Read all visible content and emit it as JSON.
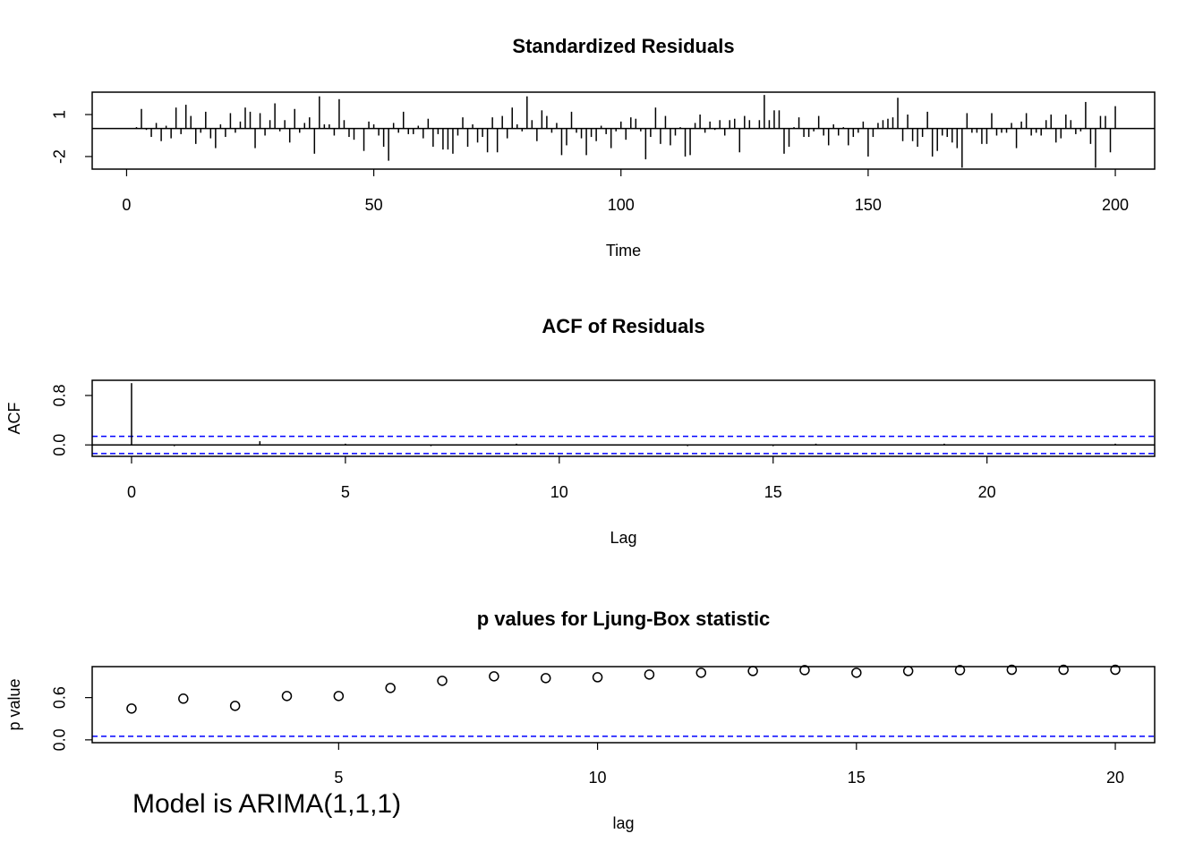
{
  "chart_data": [
    {
      "type": "spike",
      "title": "Standardized Residuals",
      "xlabel": "Time",
      "color": "#000000",
      "x": [
        1,
        2,
        3,
        4,
        5,
        6,
        7,
        8,
        9,
        10,
        11,
        12,
        13,
        14,
        15,
        16,
        17,
        18,
        19,
        20,
        21,
        22,
        23,
        24,
        25,
        26,
        27,
        28,
        29,
        30,
        31,
        32,
        33,
        34,
        35,
        36,
        37,
        38,
        39,
        40,
        41,
        42,
        43,
        44,
        45,
        46,
        47,
        48,
        49,
        50,
        51,
        52,
        53,
        54,
        55,
        56,
        57,
        58,
        59,
        60,
        61,
        62,
        63,
        64,
        65,
        66,
        67,
        68,
        69,
        70,
        71,
        72,
        73,
        74,
        75,
        76,
        77,
        78,
        79,
        80,
        81,
        82,
        83,
        84,
        85,
        86,
        87,
        88,
        89,
        90,
        91,
        92,
        93,
        94,
        95,
        96,
        97,
        98,
        99,
        100,
        101,
        102,
        103,
        104,
        105,
        106,
        107,
        108,
        109,
        110,
        111,
        112,
        113,
        114,
        115,
        116,
        117,
        118,
        119,
        120,
        121,
        122,
        123,
        124,
        125,
        126,
        127,
        128,
        129,
        130,
        131,
        132,
        133,
        134,
        135,
        136,
        137,
        138,
        139,
        140,
        141,
        142,
        143,
        144,
        145,
        146,
        147,
        148,
        149,
        150,
        151,
        152,
        153,
        154,
        155,
        156,
        157,
        158,
        159,
        160,
        161,
        162,
        163,
        164,
        165,
        166,
        167,
        168,
        169,
        170,
        171,
        172,
        173,
        174,
        175,
        176,
        177,
        178,
        179,
        180,
        181,
        182,
        183,
        184,
        185,
        186,
        187,
        188,
        189,
        190,
        191,
        192,
        193,
        194,
        195,
        196,
        197,
        198,
        199,
        200
      ],
      "values": [
        0.0,
        0.1,
        1.4,
        -0.1,
        -0.6,
        0.4,
        -0.9,
        0.2,
        -0.7,
        1.5,
        -0.4,
        1.7,
        0.9,
        -1.1,
        -0.3,
        1.2,
        -0.7,
        -1.4,
        0.3,
        -0.6,
        1.1,
        -0.3,
        0.5,
        1.5,
        1.2,
        -1.4,
        1.1,
        -0.5,
        0.6,
        1.8,
        -0.2,
        0.6,
        -1.0,
        1.4,
        -0.3,
        0.4,
        0.8,
        -1.8,
        2.3,
        0.3,
        0.3,
        -0.5,
        2.1,
        0.6,
        -0.6,
        -0.8,
        0.0,
        -1.6,
        0.5,
        0.3,
        -0.5,
        -1.3,
        -2.3,
        0.4,
        -0.3,
        1.2,
        -0.4,
        -0.4,
        0.2,
        -0.7,
        0.7,
        -1.3,
        -0.4,
        -1.5,
        -1.5,
        -1.8,
        -0.5,
        0.8,
        -1.3,
        0.3,
        -1.0,
        -0.6,
        -1.7,
        0.8,
        -1.7,
        0.9,
        -0.7,
        1.5,
        0.3,
        -0.2,
        2.3,
        0.6,
        -0.9,
        1.3,
        0.9,
        -0.3,
        0.4,
        -1.9,
        -1.2,
        1.2,
        -0.3,
        -0.7,
        -1.9,
        -0.6,
        -0.9,
        0.2,
        -0.4,
        -1.4,
        -0.2,
        0.5,
        -0.8,
        0.8,
        0.7,
        -0.2,
        -2.2,
        -0.6,
        1.5,
        -1.1,
        0.9,
        -1.2,
        -0.5,
        0.1,
        -2.0,
        -1.9,
        0.4,
        1.0,
        -0.3,
        0.5,
        -0.1,
        0.6,
        -0.5,
        0.6,
        0.7,
        -1.7,
        0.9,
        0.6,
        0.0,
        0.6,
        2.4,
        0.6,
        1.3,
        1.3,
        -1.8,
        -1.3,
        0.1,
        0.8,
        -0.6,
        -0.6,
        -0.2,
        0.9,
        -0.5,
        -1.2,
        0.3,
        -0.5,
        0.1,
        -1.2,
        -0.6,
        -0.3,
        0.5,
        -2.0,
        -0.6,
        0.4,
        0.6,
        0.7,
        0.8,
        2.2,
        -0.9,
        1.0,
        -0.9,
        -1.3,
        -0.6,
        1.2,
        -2.0,
        -1.6,
        -0.5,
        -0.6,
        -1.0,
        -1.4,
        -2.8,
        1.1,
        -0.3,
        -0.3,
        -1.1,
        -1.1,
        1.1,
        -0.5,
        -0.3,
        -0.3,
        0.4,
        -1.4,
        0.5,
        1.1,
        -0.5,
        -0.3,
        -0.5,
        0.6,
        1.0,
        -1.0,
        -0.7,
        1.0,
        0.6,
        -0.4,
        -0.2,
        1.9,
        -1.1,
        -2.8,
        0.9,
        0.9,
        -1.7,
        1.6
      ],
      "xlim": [
        -6.96,
        207.96
      ],
      "xticks": [
        0,
        50,
        100,
        150,
        200
      ],
      "ylim": [
        -2.9,
        2.6
      ],
      "yticks": [
        -2,
        1
      ],
      "hlines": [
        {
          "value": 0,
          "color": "#000000",
          "dashed": false
        }
      ]
    },
    {
      "type": "spike",
      "title": "ACF of Residuals",
      "xlabel": "Lag",
      "ylabel": "ACF",
      "color": "#000000",
      "x": [
        0,
        1,
        2,
        3,
        4,
        5,
        6,
        7,
        8,
        9,
        10,
        11,
        12,
        13,
        14,
        15,
        16,
        17,
        18,
        19,
        20,
        21,
        22,
        23
      ],
      "values": [
        1,
        -0.02,
        0.01,
        0.06,
        -0.01,
        0.02,
        0.01,
        -0.02,
        0.01,
        0.02,
        -0.01,
        0.01,
        0.01,
        -0.02,
        0.01,
        -0.02,
        0.02,
        0.01,
        -0.01,
        0.02,
        0.01,
        -0.01,
        0.01,
        0.02
      ],
      "xlim": [
        -0.92,
        23.92
      ],
      "xticks": [
        0,
        5,
        10,
        15,
        20
      ],
      "ylim": [
        -0.185,
        1.046
      ],
      "yticks": [
        {
          "value": 0,
          "label": "0.0"
        },
        {
          "value": 0.8,
          "label": "0.8"
        }
      ],
      "hlines": [
        {
          "value": 0,
          "color": "#000000",
          "dashed": false
        },
        {
          "value": 0.139,
          "color": "#0000ff",
          "dashed": true
        },
        {
          "value": -0.139,
          "color": "#0000ff",
          "dashed": true
        }
      ]
    },
    {
      "type": "scatter",
      "title": "p values for Ljung-Box statistic",
      "xlabel": "lag",
      "ylabel": "p value",
      "color": "#000000",
      "x": [
        1,
        2,
        3,
        4,
        5,
        6,
        7,
        8,
        9,
        10,
        11,
        12,
        13,
        14,
        15,
        16,
        17,
        18,
        19,
        20
      ],
      "values": [
        0.445,
        0.585,
        0.483,
        0.623,
        0.623,
        0.737,
        0.839,
        0.902,
        0.877,
        0.889,
        0.928,
        0.953,
        0.978,
        0.99,
        0.953,
        0.978,
        0.99,
        0.995,
        0.995,
        0.995
      ],
      "xlim": [
        0.24,
        20.76
      ],
      "xticks": [
        5,
        10,
        15,
        20
      ],
      "ylim": [
        -0.04,
        1.04
      ],
      "yticks": [
        {
          "value": 0,
          "label": "0.0"
        },
        {
          "value": 0.6,
          "label": "0.6"
        }
      ],
      "hlines": [
        {
          "value": 0.05,
          "color": "#0000ff",
          "dashed": true
        }
      ],
      "annotation": {
        "text": "Model is ARIMA(1,1,1)",
        "color": "#ff0000"
      }
    }
  ]
}
